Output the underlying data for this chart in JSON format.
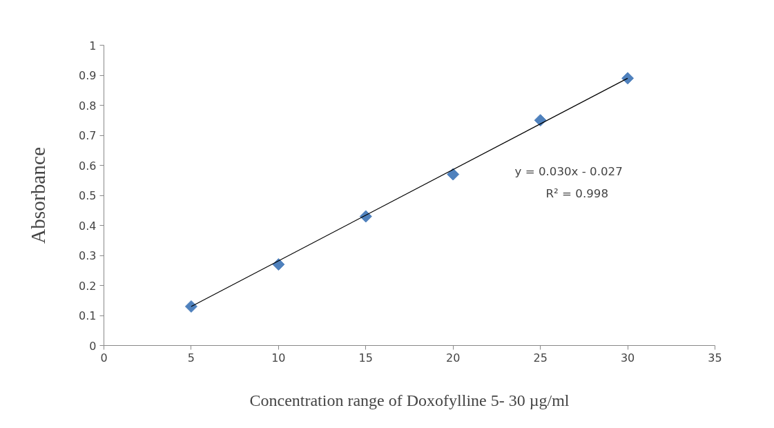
{
  "chart_data": {
    "type": "scatter",
    "xlabel": "Concentration range of Doxofylline 5- 30 µg/ml",
    "ylabel": "Absorbance",
    "xlim": [
      0,
      35
    ],
    "xticks": [
      0,
      5,
      10,
      15,
      20,
      25,
      30,
      35
    ],
    "ylim": [
      0,
      1
    ],
    "yticks": [
      0,
      0.1,
      0.2,
      0.3,
      0.4,
      0.5,
      0.6,
      0.7,
      0.8,
      0.9,
      1
    ],
    "grid": false,
    "series": [
      {
        "marker": "diamond",
        "color": "#4f81bd",
        "x": [
          5,
          10,
          15,
          20,
          25,
          30
        ],
        "values": [
          0.13,
          0.27,
          0.43,
          0.57,
          0.75,
          0.89
        ]
      },
      {
        "type": "line",
        "marker": "none",
        "color": "#000000",
        "x": [
          5,
          30
        ],
        "values": [
          0.13,
          0.89
        ],
        "line_style": "solid"
      }
    ],
    "annotations": [
      "y = 0.030x - 0.027",
      "R² = 0.998"
    ]
  }
}
